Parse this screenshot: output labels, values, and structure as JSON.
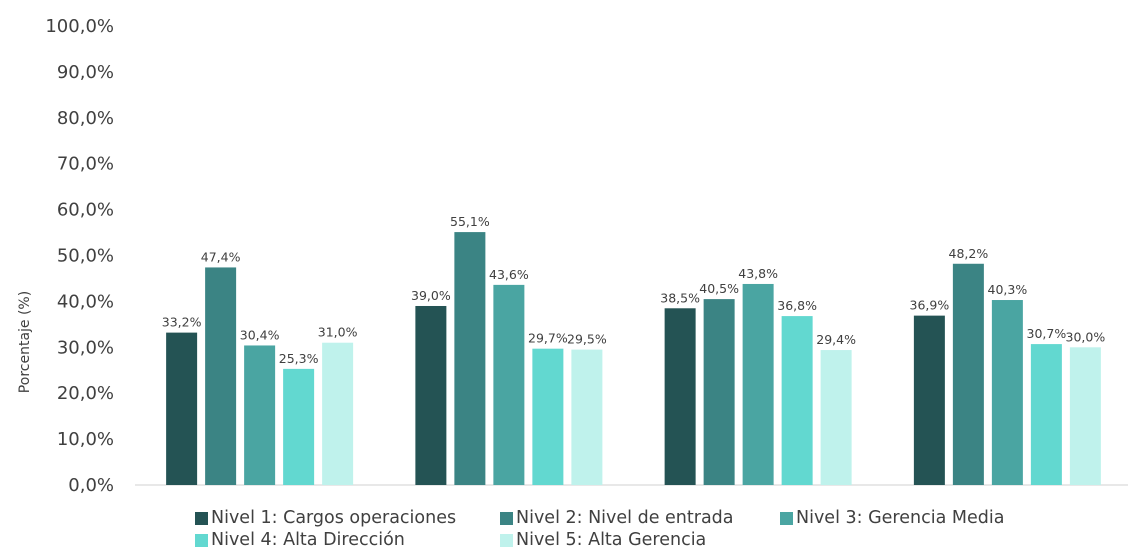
{
  "chart_data": {
    "type": "bar",
    "title": "",
    "xlabel": "",
    "ylabel": "Porcentaje (%)",
    "ylim": [
      0,
      100
    ],
    "yticks": [
      "0,0%",
      "10,0%",
      "20,0%",
      "30,0%",
      "40,0%",
      "50,0%",
      "60,0%",
      "70,0%",
      "80,0%",
      "90,0%",
      "100,0%"
    ],
    "categories": [
      "",
      "",
      "",
      ""
    ],
    "grid": false,
    "legend_position": "bottom",
    "series": [
      {
        "name": "Nivel 1: Cargos operaciones",
        "color": "#245354",
        "values": [
          33.2,
          39.0,
          38.5,
          36.9
        ],
        "labels": [
          "33,2%",
          "39,0%",
          "38,5%",
          "36,9%"
        ]
      },
      {
        "name": "Nivel 2: Nivel de entrada",
        "color": "#3b8484",
        "values": [
          47.4,
          55.1,
          40.5,
          48.2
        ],
        "labels": [
          "47,4%",
          "55,1%",
          "40,5%",
          "48,2%"
        ]
      },
      {
        "name": "Nivel 3: Gerencia Media",
        "color": "#4aa5a2",
        "values": [
          30.4,
          43.6,
          43.8,
          40.3
        ],
        "labels": [
          "30,4%",
          "43,6%",
          "43,8%",
          "40,3%"
        ]
      },
      {
        "name": "Nivel 4: Alta Dirección",
        "color": "#62d8d0",
        "values": [
          25.3,
          29.7,
          36.8,
          30.7
        ],
        "labels": [
          "25,3%",
          "29,7%",
          "36,8%",
          "30,7%"
        ]
      },
      {
        "name": "Nivel 5: Alta Gerencia",
        "color": "#bff2ec",
        "values": [
          31.0,
          29.5,
          29.4,
          30.0
        ],
        "labels": [
          "31,0%",
          "29,5%",
          "29,4%",
          "30,0%"
        ]
      }
    ]
  }
}
